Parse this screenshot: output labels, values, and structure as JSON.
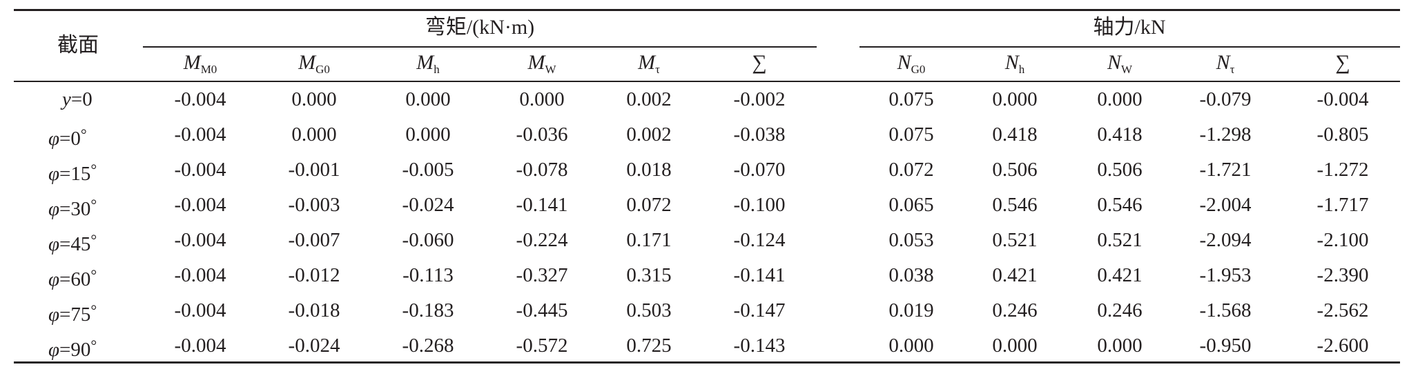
{
  "table": {
    "section_header": "截面",
    "group_moment": "弯矩/(kN·m)",
    "group_axial": "轴力/kN",
    "moment_columns": [
      {
        "symbol": "M",
        "sub": "M0"
      },
      {
        "symbol": "M",
        "sub": "G0"
      },
      {
        "symbol": "M",
        "sub": "h"
      },
      {
        "symbol": "M",
        "sub": "W"
      },
      {
        "symbol": "M",
        "sub": "τ"
      },
      {
        "symbol": "∑",
        "sub": ""
      }
    ],
    "axial_columns": [
      {
        "symbol": "N",
        "sub": "G0"
      },
      {
        "symbol": "N",
        "sub": "h"
      },
      {
        "symbol": "N",
        "sub": "W"
      },
      {
        "symbol": "N",
        "sub": "τ"
      },
      {
        "symbol": "∑",
        "sub": ""
      }
    ],
    "rows": [
      {
        "var": "y",
        "value": "=0",
        "deg": "",
        "moment": [
          "-0.004",
          "0.000",
          "0.000",
          "0.000",
          "0.002",
          "-0.002"
        ],
        "axial": [
          "0.075",
          "0.000",
          "0.000",
          "-0.079",
          "-0.004"
        ]
      },
      {
        "var": "φ",
        "value": "=0",
        "deg": "°",
        "moment": [
          "-0.004",
          "0.000",
          "0.000",
          "-0.036",
          "0.002",
          "-0.038"
        ],
        "axial": [
          "0.075",
          "0.418",
          "0.418",
          "-1.298",
          "-0.805"
        ]
      },
      {
        "var": "φ",
        "value": "=15",
        "deg": "°",
        "moment": [
          "-0.004",
          "-0.001",
          "-0.005",
          "-0.078",
          "0.018",
          "-0.070"
        ],
        "axial": [
          "0.072",
          "0.506",
          "0.506",
          "-1.721",
          "-1.272"
        ]
      },
      {
        "var": "φ",
        "value": "=30",
        "deg": "°",
        "moment": [
          "-0.004",
          "-0.003",
          "-0.024",
          "-0.141",
          "0.072",
          "-0.100"
        ],
        "axial": [
          "0.065",
          "0.546",
          "0.546",
          "-2.004",
          "-1.717"
        ]
      },
      {
        "var": "φ",
        "value": "=45",
        "deg": "°",
        "moment": [
          "-0.004",
          "-0.007",
          "-0.060",
          "-0.224",
          "0.171",
          "-0.124"
        ],
        "axial": [
          "0.053",
          "0.521",
          "0.521",
          "-2.094",
          "-2.100"
        ]
      },
      {
        "var": "φ",
        "value": "=60",
        "deg": "°",
        "moment": [
          "-0.004",
          "-0.012",
          "-0.113",
          "-0.327",
          "0.315",
          "-0.141"
        ],
        "axial": [
          "0.038",
          "0.421",
          "0.421",
          "-1.953",
          "-2.390"
        ]
      },
      {
        "var": "φ",
        "value": "=75",
        "deg": "°",
        "moment": [
          "-0.004",
          "-0.018",
          "-0.183",
          "-0.445",
          "0.503",
          "-0.147"
        ],
        "axial": [
          "0.019",
          "0.246",
          "0.246",
          "-1.568",
          "-2.562"
        ]
      },
      {
        "var": "φ",
        "value": "=90",
        "deg": "°",
        "moment": [
          "-0.004",
          "-0.024",
          "-0.268",
          "-0.572",
          "0.725",
          "-0.143"
        ],
        "axial": [
          "0.000",
          "0.000",
          "0.000",
          "-0.950",
          "-2.600"
        ]
      }
    ]
  }
}
